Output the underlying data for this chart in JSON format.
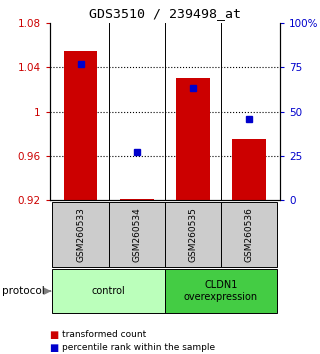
{
  "title": "GDS3510 / 239498_at",
  "samples": [
    "GSM260533",
    "GSM260534",
    "GSM260535",
    "GSM260536"
  ],
  "transformed_counts": [
    1.055,
    0.921,
    1.03,
    0.975
  ],
  "percentile_ranks": [
    77,
    27,
    63,
    46
  ],
  "ylim_left": [
    0.92,
    1.08
  ],
  "ylim_right": [
    0,
    100
  ],
  "yticks_left": [
    0.92,
    0.96,
    1.0,
    1.04,
    1.08
  ],
  "yticks_right": [
    0,
    25,
    50,
    75,
    100
  ],
  "ytick_labels_left": [
    "0.92",
    "0.96",
    "1",
    "1.04",
    "1.08"
  ],
  "ytick_labels_right": [
    "0",
    "25",
    "50",
    "75",
    "100%"
  ],
  "bar_color": "#cc0000",
  "dot_color": "#0000cc",
  "groups": [
    {
      "label": "control",
      "samples": [
        0,
        1
      ],
      "color": "#bbffbb"
    },
    {
      "label": "CLDN1\noverexpression",
      "samples": [
        2,
        3
      ],
      "color": "#44cc44"
    }
  ],
  "protocol_label": "protocol",
  "legend_bar_label": "transformed count",
  "legend_dot_label": "percentile rank within the sample",
  "bg_color": "#ffffff",
  "sample_box_color": "#cccccc"
}
